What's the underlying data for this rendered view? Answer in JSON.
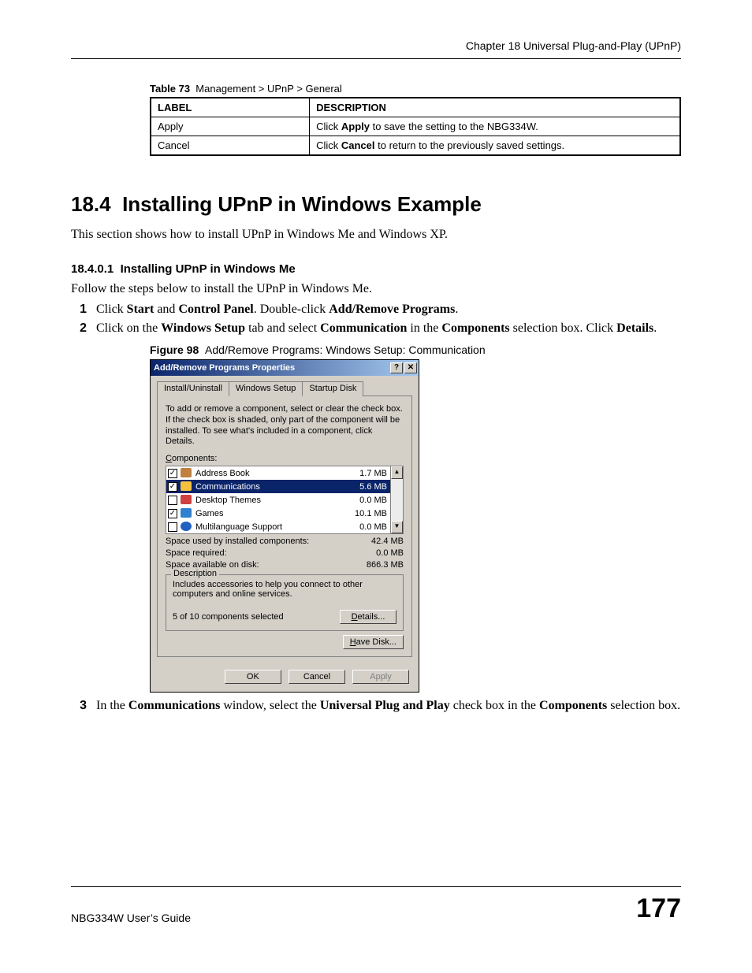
{
  "header": {
    "chapter": "Chapter 18 Universal Plug-and-Play (UPnP)"
  },
  "table73": {
    "caption_prefix": "Table 73",
    "caption": "Management > UPnP > General",
    "columns": [
      "LABEL",
      "DESCRIPTION"
    ],
    "rows": [
      {
        "label": "Apply",
        "desc_pre": "Click ",
        "desc_bold": "Apply",
        "desc_post": " to save the setting to the NBG334W."
      },
      {
        "label": "Cancel",
        "desc_pre": "Click ",
        "desc_bold": "Cancel",
        "desc_post": " to return to the previously saved settings."
      }
    ]
  },
  "section": {
    "num": "18.4",
    "title": "Installing UPnP in Windows Example",
    "intro": "This section shows how to install UPnP in Windows Me and Windows XP."
  },
  "sub": {
    "num": "18.4.0.1",
    "title": "Installing UPnP in Windows Me",
    "lead": "Follow the steps below to install the UPnP in Windows Me.",
    "step1": {
      "t1": "Click ",
      "b1": "Start",
      "t2": " and ",
      "b2": "Control Panel",
      "t3": ". Double-click ",
      "b3": "Add/Remove Programs",
      "t4": "."
    },
    "step2": {
      "t1": "Click on the ",
      "b1": "Windows Setup",
      "t2": " tab and select ",
      "b2": "Communication",
      "t3": " in the ",
      "b3": "Components",
      "t4": " selection box. Click ",
      "b4": "Details",
      "t5": "."
    },
    "step3": {
      "t1": "In the ",
      "b1": "Communications",
      "t2": " window, select the ",
      "b2": "Universal Plug and Play",
      "t3": " check box in the ",
      "b3": "Components",
      "t4": " selection box."
    }
  },
  "figure": {
    "prefix": "Figure 98",
    "caption": "Add/Remove Programs: Windows Setup: Communication"
  },
  "dialog": {
    "title": "Add/Remove Programs Properties",
    "tabs": [
      "Install/Uninstall",
      "Windows Setup",
      "Startup Disk"
    ],
    "active_tab": 1,
    "instructions": "To add or remove a component, select or clear the check box. If the check box is shaded, only part of the component will be installed. To see what's included in a component, click Details.",
    "components_label": "Components:",
    "items": [
      {
        "name": "Address Book",
        "size": "1.7 MB",
        "checked": true,
        "selected": false,
        "icon": "ic-book"
      },
      {
        "name": "Communications",
        "size": "5.6 MB",
        "checked": true,
        "selected": true,
        "icon": "ic-comm"
      },
      {
        "name": "Desktop Themes",
        "size": "0.0 MB",
        "checked": false,
        "selected": false,
        "icon": "ic-desk"
      },
      {
        "name": "Games",
        "size": "10.1 MB",
        "checked": true,
        "selected": false,
        "icon": "ic-games"
      },
      {
        "name": "Multilanguage Support",
        "size": "0.0 MB",
        "checked": false,
        "selected": false,
        "icon": "ic-lang"
      }
    ],
    "space_used_k": "Space used by installed components:",
    "space_used_v": "42.4 MB",
    "space_req_k": "Space required:",
    "space_req_v": "0.0 MB",
    "space_avail_k": "Space available on disk:",
    "space_avail_v": "866.3 MB",
    "desc_legend": "Description",
    "desc_text": "Includes accessories to help you connect to other computers and online services.",
    "selected_text": "5 of 10 components selected",
    "btn_details": "Details...",
    "btn_havedisk": "Have Disk...",
    "btn_ok": "OK",
    "btn_cancel": "Cancel",
    "btn_apply": "Apply",
    "title_help": "?",
    "title_close": "✕",
    "scroll_up": "▲",
    "scroll_down": "▼"
  },
  "footer": {
    "guide": "NBG334W User’s Guide",
    "page": "177"
  },
  "colors": {
    "titlebar_start": "#0a246a",
    "titlebar_end": "#a6caf0",
    "selection": "#0a246a",
    "dialog_face": "#d4d0c8"
  }
}
